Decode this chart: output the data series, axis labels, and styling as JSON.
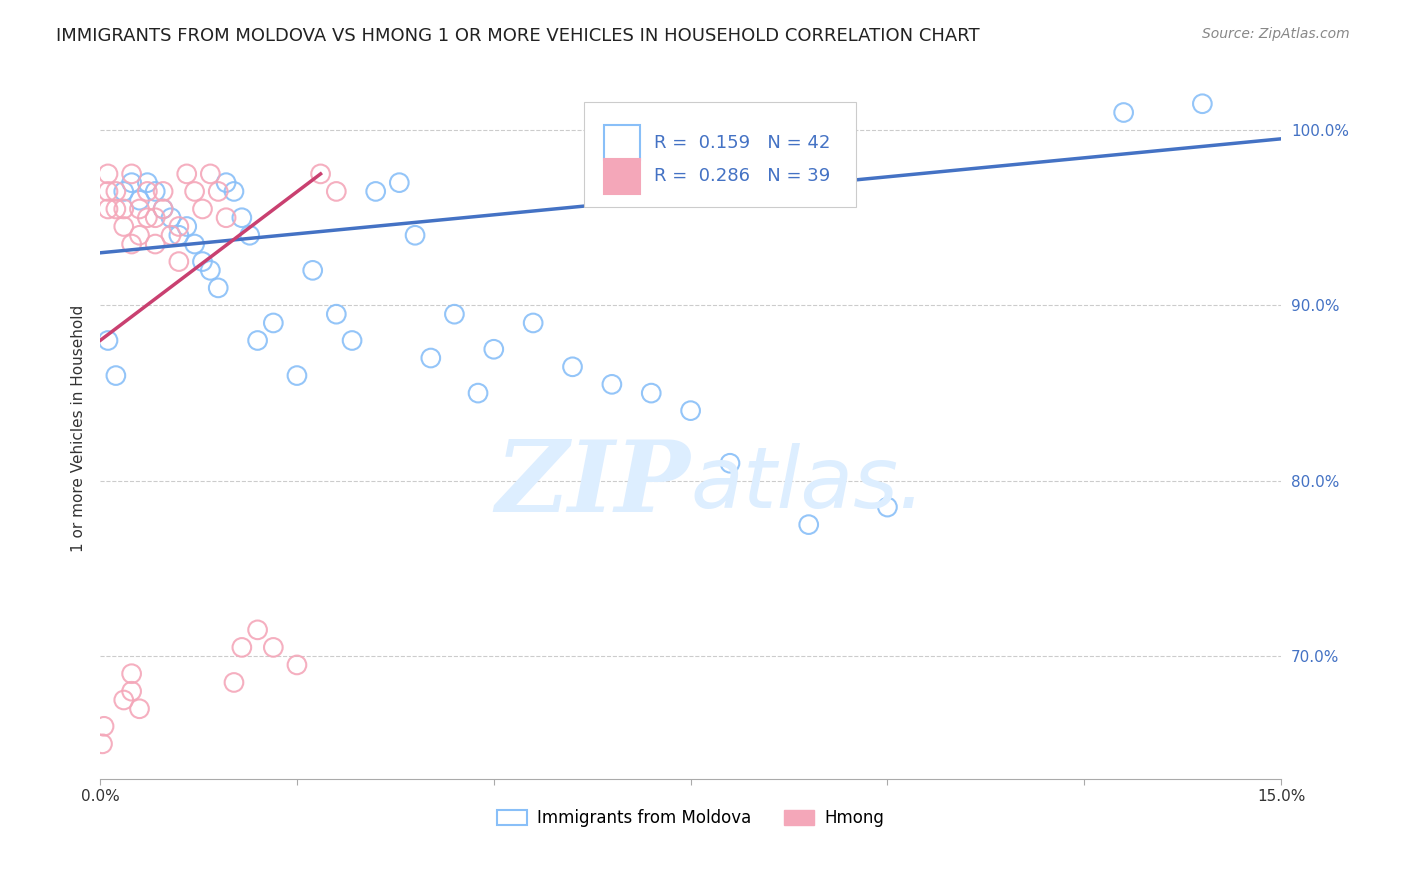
{
  "title": "IMMIGRANTS FROM MOLDOVA VS HMONG 1 OR MORE VEHICLES IN HOUSEHOLD CORRELATION CHART",
  "source": "Source: ZipAtlas.com",
  "ylabel": "1 or more Vehicles in Household",
  "ylim": [
    63.0,
    103.0
  ],
  "xlim": [
    0.0,
    0.15
  ],
  "legend_blue_R": "0.159",
  "legend_blue_N": "42",
  "legend_pink_R": "0.286",
  "legend_pink_N": "39",
  "blue_scatter_x": [
    0.001,
    0.002,
    0.003,
    0.004,
    0.005,
    0.006,
    0.007,
    0.008,
    0.009,
    0.01,
    0.011,
    0.012,
    0.013,
    0.014,
    0.015,
    0.016,
    0.017,
    0.018,
    0.019,
    0.02,
    0.022,
    0.025,
    0.027,
    0.03,
    0.032,
    0.035,
    0.038,
    0.04,
    0.042,
    0.045,
    0.048,
    0.05,
    0.055,
    0.06,
    0.065,
    0.07,
    0.075,
    0.08,
    0.09,
    0.1,
    0.13,
    0.14
  ],
  "blue_scatter_y": [
    88.0,
    86.0,
    96.5,
    97.0,
    96.0,
    97.0,
    96.5,
    95.5,
    95.0,
    94.0,
    94.5,
    93.5,
    92.5,
    92.0,
    91.0,
    97.0,
    96.5,
    95.0,
    94.0,
    88.0,
    89.0,
    86.0,
    92.0,
    89.5,
    88.0,
    96.5,
    97.0,
    94.0,
    87.0,
    89.5,
    85.0,
    87.5,
    89.0,
    86.5,
    85.5,
    85.0,
    84.0,
    81.0,
    77.5,
    78.5,
    101.0,
    101.5
  ],
  "pink_scatter_x": [
    0.0003,
    0.0005,
    0.001,
    0.001,
    0.001,
    0.002,
    0.002,
    0.003,
    0.003,
    0.004,
    0.004,
    0.005,
    0.005,
    0.006,
    0.006,
    0.007,
    0.007,
    0.008,
    0.008,
    0.009,
    0.01,
    0.01,
    0.011,
    0.012,
    0.013,
    0.014,
    0.015,
    0.016,
    0.017,
    0.018,
    0.02,
    0.022,
    0.025,
    0.028,
    0.03,
    0.003,
    0.004,
    0.004,
    0.005
  ],
  "pink_scatter_y": [
    65.0,
    66.0,
    95.5,
    96.5,
    97.5,
    95.5,
    96.5,
    94.5,
    95.5,
    93.5,
    97.5,
    94.0,
    95.5,
    96.5,
    95.0,
    93.5,
    95.0,
    95.5,
    96.5,
    94.0,
    92.5,
    94.5,
    97.5,
    96.5,
    95.5,
    97.5,
    96.5,
    95.0,
    68.5,
    70.5,
    71.5,
    70.5,
    69.5,
    97.5,
    96.5,
    67.5,
    68.0,
    69.0,
    67.0
  ],
  "blue_line_x": [
    0.0,
    0.15
  ],
  "blue_line_y": [
    93.0,
    99.5
  ],
  "pink_line_x": [
    0.0,
    0.028
  ],
  "pink_line_y": [
    88.0,
    97.5
  ],
  "scatter_color_blue": "#89bff8",
  "scatter_color_pink": "#f4a7b9",
  "line_color_blue": "#4472c4",
  "line_color_pink": "#c94070",
  "grid_color": "#cccccc",
  "background_color": "#ffffff",
  "watermark_color": "#ddeeff",
  "legend_label_blue": "Immigrants from Moldova",
  "legend_label_pink": "Hmong",
  "ytick_positions": [
    70.0,
    80.0,
    90.0,
    100.0
  ],
  "ytick_labels": [
    "70.0%",
    "80.0%",
    "90.0%",
    "100.0%"
  ],
  "xtick_positions": [
    0.0,
    0.025,
    0.05,
    0.075,
    0.1,
    0.125,
    0.15
  ],
  "xtick_labels": [
    "0.0%",
    "",
    "",
    "",
    "",
    "",
    "15.0%"
  ]
}
